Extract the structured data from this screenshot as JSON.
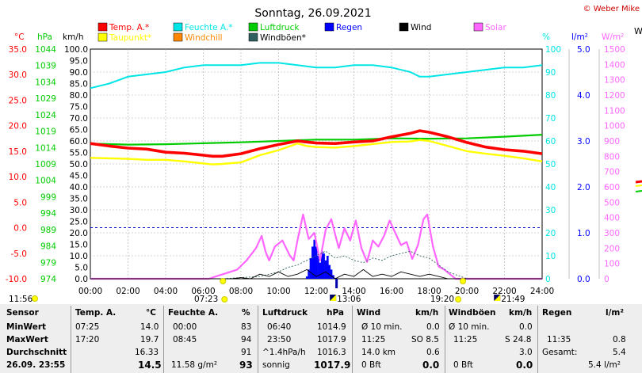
{
  "title": "Sonntag, 26.09.2021",
  "copyright": "© Weber Mike",
  "colors": {
    "temp": "#ff0000",
    "humidity": "#00e5e5",
    "pressure": "#00cc00",
    "rain": "#0000ff",
    "wind": "#000000",
    "solar": "#ff66ff",
    "dewpoint": "#ffff00",
    "windchill": "#ff8800",
    "gust": "#2f5f5f"
  },
  "legend": [
    {
      "label": "Temp. A.*",
      "color": "#ff0000"
    },
    {
      "label": "Feuchte A.*",
      "color": "#00e5e5"
    },
    {
      "label": "Luftdruck",
      "color": "#00cc00"
    },
    {
      "label": "Regen",
      "color": "#0000ff"
    },
    {
      "label": "Wind",
      "color": "#000000"
    },
    {
      "label": "Solar",
      "color": "#ff66ff"
    },
    {
      "label": "Taupunkt*",
      "color": "#ffff00"
    },
    {
      "label": "Windchill",
      "color": "#ff8800"
    },
    {
      "label": "Windböen*",
      "color": "#2f5f5f"
    }
  ],
  "chart_data": {
    "type": "line",
    "x_ticks": [
      "00:00",
      "02:00",
      "04:00",
      "06:00",
      "08:00",
      "10:00",
      "12:00",
      "14:00",
      "16:00",
      "18:00",
      "20:00",
      "22:00",
      "24:00"
    ],
    "axes": {
      "temp_c": {
        "unit": "°C",
        "ticks": [
          "35.0",
          "30.0",
          "25.0",
          "20.0",
          "15.0",
          "10.0",
          "5.0",
          "0.0",
          "-5.0",
          "-10.0"
        ],
        "ylim": [
          -10,
          35
        ]
      },
      "pressure_hpa": {
        "unit": "hPa",
        "ticks": [
          "1044",
          "1039",
          "1034",
          "1029",
          "1024",
          "1019",
          "1014",
          "1009",
          "1004",
          "999",
          "994",
          "989",
          "984",
          "979",
          "974"
        ],
        "ylim": [
          974,
          1044
        ]
      },
      "wind_kmh": {
        "unit": "km/h",
        "ticks": [
          "100.0",
          "95.0",
          "90.0",
          "85.0",
          "80.0",
          "75.0",
          "70.0",
          "65.0",
          "60.0",
          "55.0",
          "50.0",
          "45.0",
          "40.0",
          "35.0",
          "30.0",
          "25.0",
          "20.0",
          "15.0",
          "10.0",
          "5.0",
          "0.0"
        ],
        "ylim": [
          0,
          100
        ]
      },
      "humidity_pct": {
        "unit": "%",
        "ticks": [
          "100",
          "90",
          "80",
          "70",
          "60",
          "50",
          "40",
          "30",
          "20",
          "10",
          "0"
        ],
        "ylim": [
          0,
          100
        ]
      },
      "rain_lm2": {
        "unit": "l/m²",
        "ticks": [
          "5.0",
          "4.0",
          "3.0",
          "2.0",
          "1.0",
          "0.0"
        ],
        "ylim": [
          0,
          5
        ]
      },
      "solar_wm2": {
        "unit": "W/m²",
        "ticks": [
          "1500",
          "1400",
          "1300",
          "1200",
          "1100",
          "1000",
          "900",
          "800",
          "700",
          "600",
          "500",
          "400",
          "300",
          "200",
          "100",
          "0"
        ],
        "ylim": [
          0,
          1500
        ]
      }
    },
    "series": [
      {
        "name": "Temp. A.*",
        "axis": "temp_c",
        "x": [
          0,
          1,
          2,
          3,
          4,
          5,
          6,
          6.5,
          7,
          8,
          9,
          10,
          11,
          11.5,
          12,
          13,
          14,
          15,
          16,
          17,
          17.5,
          18,
          19,
          20,
          21,
          22,
          23,
          24
        ],
        "values": [
          16.5,
          16.0,
          15.6,
          15.4,
          14.8,
          14.6,
          14.2,
          14.0,
          14.0,
          14.5,
          15.5,
          16.3,
          17.0,
          16.8,
          16.6,
          16.5,
          16.8,
          17.0,
          17.8,
          18.5,
          19.0,
          18.7,
          17.8,
          16.7,
          15.8,
          15.3,
          15.0,
          14.5
        ]
      },
      {
        "name": "Taupunkt*",
        "axis": "temp_c",
        "x": [
          0,
          1,
          2,
          3,
          4,
          5,
          6,
          6.5,
          7,
          8,
          9,
          10,
          11,
          11.5,
          12,
          13,
          14,
          15,
          16,
          17,
          17.5,
          18,
          19,
          20,
          21,
          22,
          23,
          24
        ],
        "values": [
          13.7,
          13.6,
          13.5,
          13.3,
          13.3,
          13.0,
          12.6,
          12.4,
          12.5,
          12.8,
          14.2,
          15.2,
          16.5,
          16.0,
          15.8,
          15.7,
          16.0,
          16.4,
          16.8,
          16.9,
          17.2,
          17.0,
          16.0,
          15.0,
          14.5,
          14.1,
          13.6,
          13.0
        ]
      },
      {
        "name": "Feuchte A.*",
        "axis": "humidity_pct",
        "x": [
          0,
          1,
          2,
          3,
          4,
          5,
          6,
          7,
          8,
          9,
          10,
          11,
          12,
          13,
          14,
          15,
          16,
          17,
          17.5,
          18,
          19,
          20,
          21,
          22,
          23,
          24
        ],
        "values": [
          83,
          85,
          88,
          89,
          90,
          92,
          93,
          93,
          93,
          94,
          94,
          93,
          92,
          92,
          93,
          93,
          92,
          90,
          88,
          88,
          89,
          90,
          91,
          92,
          92,
          93
        ]
      },
      {
        "name": "Luftdruck",
        "axis": "pressure_hpa",
        "x": [
          0,
          2,
          4,
          6,
          8,
          10,
          12,
          14,
          16,
          18,
          20,
          22,
          24
        ],
        "values": [
          1015.2,
          1014.9,
          1015.0,
          1015.3,
          1015.6,
          1016.0,
          1016.4,
          1016.4,
          1016.8,
          1016.7,
          1016.8,
          1017.3,
          1017.9
        ]
      },
      {
        "name": "Solar",
        "axis": "solar_wm2",
        "x": [
          0,
          6.3,
          6.8,
          7.3,
          7.8,
          8.3,
          8.8,
          9.1,
          9.3,
          9.5,
          9.8,
          10.2,
          10.6,
          10.8,
          11.0,
          11.3,
          11.6,
          11.9,
          12.2,
          12.5,
          12.8,
          13.0,
          13.2,
          13.5,
          13.8,
          14.1,
          14.4,
          14.7,
          15.0,
          15.3,
          15.6,
          15.9,
          16.2,
          16.5,
          16.8,
          17.1,
          17.4,
          17.7,
          17.9,
          18.2,
          18.5,
          18.8,
          19.1,
          19.4,
          24
        ],
        "values": [
          0,
          0,
          20,
          40,
          60,
          120,
          200,
          280,
          180,
          120,
          210,
          250,
          150,
          120,
          250,
          420,
          260,
          300,
          120,
          320,
          390,
          290,
          200,
          330,
          250,
          380,
          200,
          110,
          250,
          210,
          280,
          380,
          300,
          220,
          240,
          130,
          220,
          390,
          420,
          210,
          80,
          60,
          30,
          0,
          0
        ]
      },
      {
        "name": "Wind",
        "axis": "wind_kmh",
        "x": [
          0,
          6.5,
          7,
          7.5,
          8,
          8.5,
          9,
          9.5,
          10,
          10.5,
          11,
          11.5,
          12,
          12.5,
          13,
          13.5,
          14,
          14.5,
          15,
          15.5,
          16,
          16.5,
          17,
          17.5,
          18,
          18.5,
          19,
          24
        ],
        "values": [
          0,
          0,
          0,
          0,
          0.5,
          0,
          2,
          1,
          3,
          1,
          2,
          4,
          1,
          3,
          0,
          2,
          1,
          4,
          1,
          2,
          1,
          3,
          2,
          1,
          2,
          1,
          0,
          0
        ]
      },
      {
        "name": "Windböen*",
        "axis": "wind_kmh",
        "x": [
          0,
          7,
          8,
          9,
          10,
          10.5,
          11,
          11.5,
          12,
          12.5,
          13,
          13.5,
          14,
          14.5,
          15,
          15.5,
          16,
          16.5,
          17,
          17.5,
          18,
          18.5,
          19,
          20,
          24
        ],
        "values": [
          0,
          0,
          0.5,
          1,
          3,
          5,
          6,
          8,
          10,
          12,
          9,
          10,
          8,
          7,
          9,
          8,
          10,
          11,
          12,
          10,
          9,
          6,
          3,
          0,
          0
        ]
      }
    ],
    "rain": {
      "unit": "l/m²",
      "axis": "rain_lm2",
      "x": [
        11.5,
        11.6,
        11.7,
        11.8,
        11.9,
        12.0,
        12.1,
        12.2,
        12.3,
        12.4,
        12.5,
        12.6,
        12.7,
        12.8,
        12.9,
        13.0
      ],
      "values": [
        0.05,
        0.2,
        0.45,
        0.7,
        0.85,
        0.7,
        0.5,
        0.35,
        0.6,
        0.55,
        0.4,
        0.5,
        0.3,
        0.2,
        0.08,
        0.02
      ]
    },
    "freeze_line_c": 0.0,
    "events": [
      {
        "label": "11:56",
        "type": "moon",
        "hour": 0
      },
      {
        "label": "07:23",
        "type": "sunrise",
        "hour": 7.38
      },
      {
        "label": "13:06",
        "type": "max",
        "hour": 13.1
      },
      {
        "label": "19:20",
        "type": "sunset",
        "hour": 19.33
      },
      {
        "label": "21:49",
        "type": "moonrise",
        "hour": 21.82
      }
    ]
  },
  "footer": {
    "col_sensor": {
      "hdr": "Sensor",
      "r1": "MinWert",
      "r2": "MaxWert",
      "r3": "Durchschnitt",
      "r4": "26.09.  23:55"
    },
    "col_temp": {
      "hdr": "Temp. A.",
      "unit": "°C",
      "r1t": "07:25",
      "r1v": "14.0",
      "r2t": "17:20",
      "r2v": "19.7",
      "r3v": "16.33",
      "r4v": "14.5"
    },
    "col_hum": {
      "hdr": "Feuchte A.",
      "unit": "%",
      "r1t": "00:00",
      "r1v": "83",
      "r2t": "08:45",
      "r2v": "94",
      "r3v": "91",
      "r4t": "11.58 g/m²",
      "r4v": "93"
    },
    "col_press": {
      "hdr": "Luftdruck",
      "unit": "hPa",
      "r1t": "06:40",
      "r1v": "1014.9",
      "r2t": "23:50",
      "r2v": "1017.9",
      "r3t": "^1.4hPa/h",
      "r3v": "1016.3",
      "r4t": "sonnig",
      "r4v": "1017.9"
    },
    "col_wind": {
      "hdr": "Wind",
      "unit": "km/h",
      "r1t": "Ø 10 min.",
      "r1v": "0.0",
      "r2t": "11:25",
      "r2m": "SO 8.5",
      "r3t": "14.0 km",
      "r3v": "0.6",
      "r4t": "0 Bft",
      "r4v": "0.0"
    },
    "col_gust": {
      "hdr": "Windböen",
      "unit": "km/h",
      "r1t": "Ø 10 min.",
      "r1v": "0.0",
      "r2t": "11:25",
      "r2m": "S 24.8",
      "r3v": "3.0",
      "r4t": "0 Bft",
      "r4v": "0.0"
    },
    "col_rain": {
      "hdr": "Regen",
      "unit": "l/m²",
      "r2t": "11:35",
      "r2v": "0.8",
      "r3t": "Gesamt:",
      "r3v": "5.4",
      "r4v": "5.4 l/m²"
    }
  }
}
